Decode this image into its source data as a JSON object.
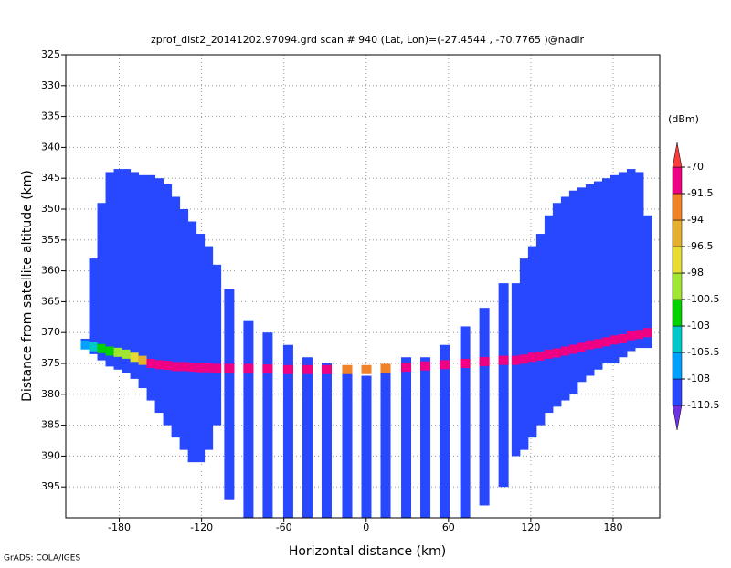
{
  "chart_data": {
    "type": "profile",
    "title": "zprof_dist2_20141202.97094.grd  scan # 940  (Lat, Lon)=(-27.4544 , -70.7765 )@nadir",
    "xlabel": "Horizontal distance (km)",
    "ylabel": "Distance from satellite altitude (km)",
    "footer": "GrADS: COLA/IGES",
    "xlim": [
      -219,
      214
    ],
    "ylim": [
      325,
      400
    ],
    "xticks": [
      -180,
      -120,
      -60,
      0,
      60,
      120,
      180
    ],
    "yticks": [
      325,
      330,
      335,
      340,
      345,
      350,
      355,
      360,
      365,
      370,
      375,
      380,
      385,
      390,
      395
    ],
    "grid": true,
    "colorbar": {
      "label": "(dBm)",
      "levels": [
        -110.5,
        -108,
        -105.5,
        -103,
        -100.5,
        -98,
        -96.5,
        -94,
        -91.5,
        -70
      ],
      "colors": [
        "#7030e8",
        "#2848ff",
        "#00a0ff",
        "#00c8c8",
        "#00d200",
        "#a0e632",
        "#e6dc32",
        "#e6af2d",
        "#f08228",
        "#f00082",
        "#fa3c3c"
      ]
    },
    "field_dbm": -109,
    "beams": {
      "x": [
        -205,
        -199,
        -193,
        -187,
        -181,
        -175,
        -169,
        -163,
        -157,
        -151,
        -145,
        -139,
        -133,
        -127,
        -121,
        -115,
        -109,
        -100,
        -86,
        -72,
        -57,
        -43,
        -29,
        -14,
        0,
        14,
        29,
        43,
        57,
        72,
        86,
        100,
        109,
        115,
        121,
        127,
        133,
        139,
        145,
        151,
        157,
        163,
        169,
        175,
        181,
        187,
        193,
        199,
        205
      ],
      "top": [
        371,
        358,
        349,
        344,
        343.5,
        343.5,
        344,
        344.5,
        344.5,
        345,
        346,
        348,
        350,
        352,
        354,
        356,
        359,
        363,
        368,
        370,
        372,
        374,
        375,
        376,
        377,
        376,
        374,
        374,
        372,
        369,
        366,
        362,
        362,
        358,
        356,
        354,
        351,
        349,
        348,
        347,
        346.5,
        346,
        345.5,
        345,
        344.5,
        344,
        343.5,
        344,
        351
      ],
      "bottom": [
        372.5,
        373.5,
        374.5,
        375.5,
        376,
        376.5,
        377.5,
        379,
        381,
        383,
        385,
        387,
        389,
        391,
        391,
        389,
        385,
        397,
        400,
        400,
        400,
        400,
        400,
        400,
        400,
        400,
        400,
        400,
        400,
        400,
        398,
        395,
        390,
        389,
        387,
        385,
        383,
        382,
        381,
        380,
        378,
        377,
        376,
        375,
        375,
        374,
        373,
        372.5,
        372.5
      ],
      "band": [
        372,
        372.3,
        372.6,
        373,
        373.2,
        373.5,
        374,
        374.5,
        375,
        375.2,
        375.3,
        375.5,
        375.5,
        375.6,
        375.7,
        375.7,
        375.8,
        375.8,
        375.8,
        375.9,
        376,
        376,
        376,
        376,
        376,
        375.8,
        375.6,
        375.4,
        375.2,
        375,
        374.7,
        374.5,
        374.5,
        374.3,
        374,
        373.8,
        373.5,
        373.3,
        373,
        372.7,
        372.4,
        372,
        371.8,
        371.5,
        371.2,
        371,
        370.5,
        370.3,
        370
      ],
      "band_dbm": [
        -108,
        -104,
        -101,
        -101,
        -99,
        -99,
        -97,
        -95,
        -85,
        -85,
        -85,
        -85,
        -85,
        -85,
        -85,
        -85,
        -85,
        -85,
        -85,
        -85,
        -85,
        -85,
        -85,
        -92,
        -93,
        -92,
        -85,
        -85,
        -85,
        -85,
        -85,
        -85,
        -85,
        -85,
        -85,
        -85,
        -85,
        -85,
        -85,
        -85,
        -85,
        -85,
        -85,
        -85,
        -85,
        -85,
        -85,
        -85,
        -85
      ]
    }
  }
}
